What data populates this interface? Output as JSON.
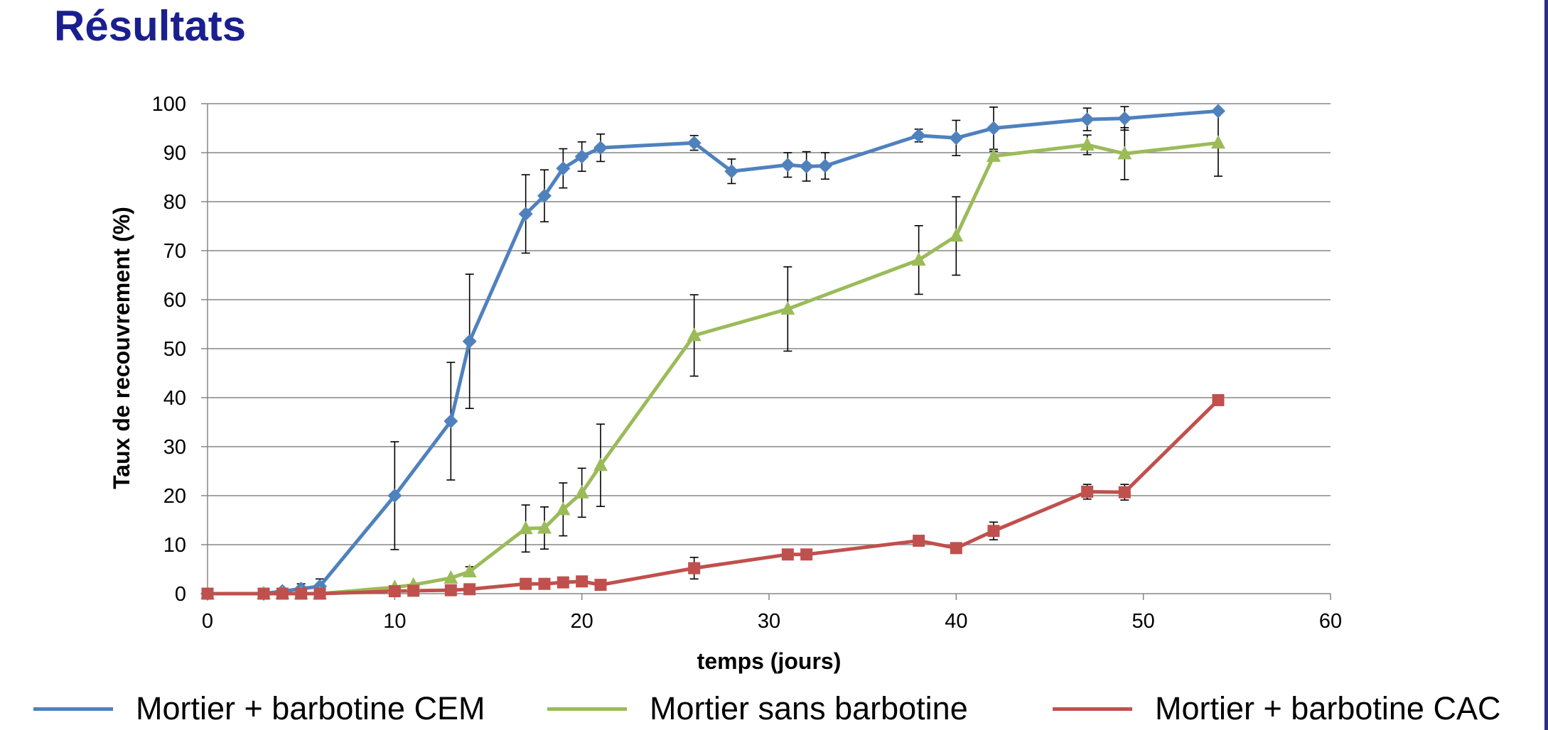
{
  "page": {
    "title": "Résultats"
  },
  "chart_data": {
    "type": "line",
    "title": "",
    "xlabel": "temps (jours)",
    "ylabel": "Taux de recouvrement (%)",
    "xlim": [
      0,
      60
    ],
    "ylim": [
      0,
      100
    ],
    "xticks": [
      0,
      10,
      20,
      30,
      40,
      50,
      60
    ],
    "yticks": [
      0,
      10,
      20,
      30,
      40,
      50,
      60,
      70,
      80,
      90,
      100
    ],
    "grid": "horizontal",
    "legend": "bottom",
    "series": [
      {
        "name": "Mortier + barbotine CEM",
        "color": "#4f81bd",
        "marker": "diamond",
        "points": [
          {
            "x": 0,
            "y": 0
          },
          {
            "x": 3,
            "y": 0
          },
          {
            "x": 4,
            "y": 0.5,
            "err": 0.5
          },
          {
            "x": 5,
            "y": 1,
            "err": 1
          },
          {
            "x": 6,
            "y": 1.5,
            "err": 1.5
          },
          {
            "x": 10,
            "y": 20,
            "err": 11
          },
          {
            "x": 13,
            "y": 35.2,
            "err": 12
          },
          {
            "x": 14,
            "y": 51.5,
            "err": 13.7
          },
          {
            "x": 17,
            "y": 77.5,
            "err": 8
          },
          {
            "x": 18,
            "y": 81.2,
            "err": 5.3
          },
          {
            "x": 19,
            "y": 86.8,
            "err": 4
          },
          {
            "x": 20,
            "y": 89.2,
            "err": 3
          },
          {
            "x": 21,
            "y": 91,
            "err": 2.8
          },
          {
            "x": 26,
            "y": 92,
            "err": 1.5
          },
          {
            "x": 28,
            "y": 86.2,
            "err": 2.5
          },
          {
            "x": 31,
            "y": 87.5,
            "err": 2.5
          },
          {
            "x": 32,
            "y": 87.2,
            "err": 3
          },
          {
            "x": 33,
            "y": 87.3,
            "err": 2.7
          },
          {
            "x": 38,
            "y": 93.5,
            "err": 1.3
          },
          {
            "x": 40,
            "y": 93,
            "err": 3.6
          },
          {
            "x": 42,
            "y": 95,
            "err": 4.3
          },
          {
            "x": 47,
            "y": 96.8,
            "err": 2.3
          },
          {
            "x": 49,
            "y": 97,
            "err": 2.4
          },
          {
            "x": 54,
            "y": 98.5,
            "err": 0
          }
        ]
      },
      {
        "name": "Mortier sans barbotine",
        "color": "#9bbb59",
        "marker": "triangle",
        "points": [
          {
            "x": 0,
            "y": 0
          },
          {
            "x": 3,
            "y": 0
          },
          {
            "x": 4,
            "y": 0
          },
          {
            "x": 5,
            "y": 0
          },
          {
            "x": 6,
            "y": 0
          },
          {
            "x": 10,
            "y": 1.3
          },
          {
            "x": 11,
            "y": 1.8
          },
          {
            "x": 13,
            "y": 3.2
          },
          {
            "x": 14,
            "y": 4.5,
            "err": 1
          },
          {
            "x": 17,
            "y": 13.3,
            "err": 4.8
          },
          {
            "x": 18,
            "y": 13.4,
            "err": 4.3
          },
          {
            "x": 19,
            "y": 17.2,
            "err": 5.4
          },
          {
            "x": 20,
            "y": 20.6,
            "err": 5
          },
          {
            "x": 21,
            "y": 26.2,
            "err": 8.4
          },
          {
            "x": 26,
            "y": 52.7,
            "err": 8.3
          },
          {
            "x": 31,
            "y": 58.1,
            "err": 8.6
          },
          {
            "x": 38,
            "y": 68.1,
            "err": 7
          },
          {
            "x": 40,
            "y": 73,
            "err": 8
          },
          {
            "x": 42,
            "y": 89.3,
            "err": 1
          },
          {
            "x": 47,
            "y": 91.6,
            "err": 2
          },
          {
            "x": 49,
            "y": 89.8,
            "err": 5.3
          },
          {
            "x": 54,
            "y": 92,
            "err": 6.8
          }
        ]
      },
      {
        "name": "Mortier + barbotine CAC",
        "color": "#c0504d",
        "marker": "square",
        "points": [
          {
            "x": 0,
            "y": 0
          },
          {
            "x": 3,
            "y": 0
          },
          {
            "x": 4,
            "y": 0
          },
          {
            "x": 5,
            "y": 0
          },
          {
            "x": 6,
            "y": 0
          },
          {
            "x": 10,
            "y": 0.5
          },
          {
            "x": 11,
            "y": 0.6
          },
          {
            "x": 13,
            "y": 0.7
          },
          {
            "x": 14,
            "y": 0.9
          },
          {
            "x": 17,
            "y": 2
          },
          {
            "x": 18,
            "y": 2
          },
          {
            "x": 19,
            "y": 2.3
          },
          {
            "x": 20,
            "y": 2.5
          },
          {
            "x": 21,
            "y": 1.8
          },
          {
            "x": 26,
            "y": 5.2,
            "err": 2.2
          },
          {
            "x": 31,
            "y": 8
          },
          {
            "x": 32,
            "y": 8
          },
          {
            "x": 38,
            "y": 10.8
          },
          {
            "x": 40,
            "y": 9.3
          },
          {
            "x": 42,
            "y": 12.8,
            "err": 1.8
          },
          {
            "x": 47,
            "y": 20.8,
            "err": 1.5
          },
          {
            "x": 49,
            "y": 20.7,
            "err": 1.6
          },
          {
            "x": 54,
            "y": 39.5
          }
        ]
      }
    ]
  }
}
